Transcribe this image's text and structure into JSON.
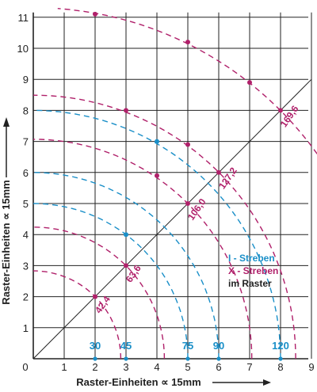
{
  "chart_data": {
    "type": "line",
    "xlabel": "Raster-Einheiten ∝ 15mm",
    "ylabel": "Raster-Einheiten ∝ 15mm",
    "xlim": [
      0,
      9
    ],
    "ylim": [
      0,
      11
    ],
    "x_ticks": [
      "0",
      "1",
      "2",
      "3",
      "4",
      "5",
      "6",
      "7",
      "8",
      "9"
    ],
    "y_ticks": [
      "1",
      "2",
      "3",
      "4",
      "5",
      "6",
      "7",
      "8",
      "9",
      "10",
      "11"
    ],
    "grid": true,
    "colors": {
      "x_streben": "#b0206a",
      "i_streben": "#1a8fc8",
      "grid": "#222222"
    },
    "legend": {
      "position": "right",
      "items": [
        {
          "label": "I - Streben",
          "color": "#1a8fc8"
        },
        {
          "label": "X - Streben",
          "color": "#b0206a"
        },
        {
          "label": "im Raster",
          "color": "#222222"
        }
      ]
    },
    "x_streben": [
      {
        "radius": 2.83,
        "label": "42,4",
        "points": [
          [
            2,
            2
          ]
        ]
      },
      {
        "radius": 4.24,
        "label": "63,6",
        "points": [
          [
            3,
            3
          ]
        ]
      },
      {
        "radius": 7.07,
        "label": "106,0",
        "points": [
          [
            4,
            5.9
          ],
          [
            5,
            5
          ]
        ]
      },
      {
        "radius": 8.49,
        "label": "127,2",
        "points": [
          [
            3,
            8
          ],
          [
            5,
            6.9
          ],
          [
            6,
            6
          ]
        ]
      },
      {
        "radius": 11.31,
        "label": "169,6",
        "points": [
          [
            2,
            11.1
          ],
          [
            5,
            10.2
          ],
          [
            7,
            8.9
          ],
          [
            8,
            8
          ]
        ]
      }
    ],
    "i_streben": [
      {
        "radius": 5,
        "label": "75",
        "points": [
          [
            3,
            4
          ]
        ]
      },
      {
        "radius": 6,
        "label": "90",
        "points": []
      },
      {
        "radius": 8,
        "label": "120",
        "points": [
          [
            4,
            7
          ]
        ]
      }
    ],
    "baseline_markers": [
      {
        "x": 2,
        "label": "30"
      },
      {
        "x": 3,
        "label": "45"
      },
      {
        "x": 5,
        "label": "75"
      },
      {
        "x": 6,
        "label": "90"
      },
      {
        "x": 8,
        "label": "120"
      }
    ]
  }
}
